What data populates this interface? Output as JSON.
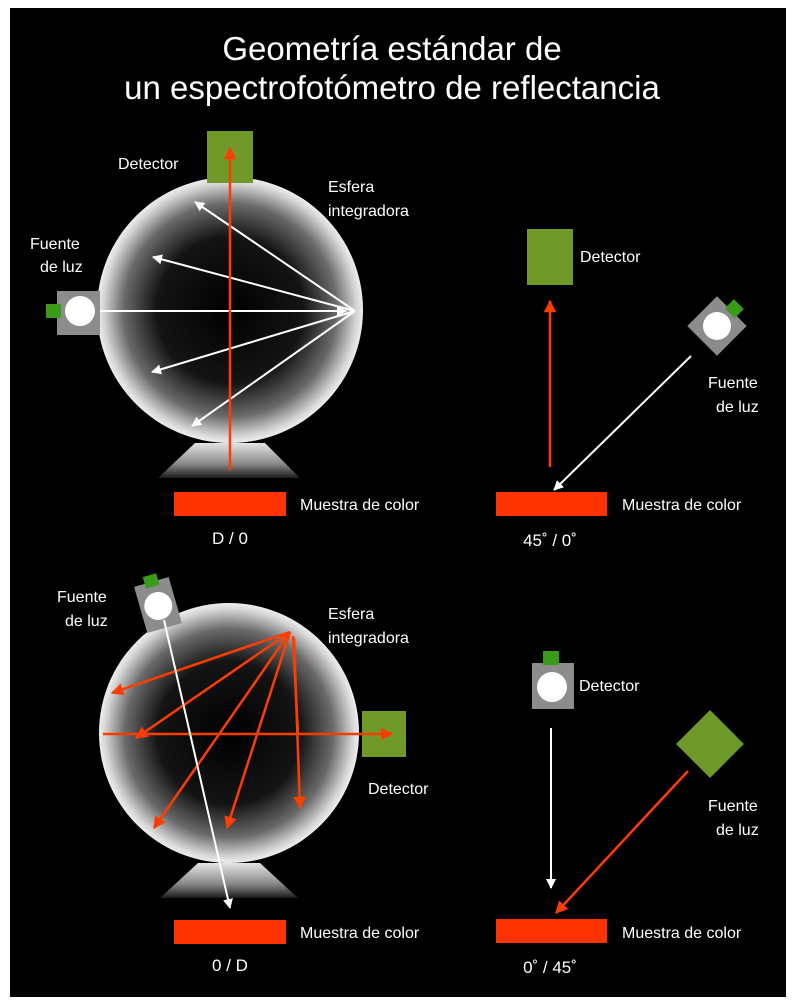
{
  "title": {
    "line1": "Geometría estándar de",
    "line2": "un espectrofotómetro de reflectancia"
  },
  "colors": {
    "background": "#000000",
    "text": "#ffffff",
    "detector": "#6f9a2a",
    "sample": "#ff3300",
    "red_ray": "#ff3d00",
    "white_ray": "#ffffff",
    "lamp_housing": "#8c8c8c",
    "lamp_socket": "#3a9a1a"
  },
  "icons": [
    "integrating-sphere",
    "light-source-lamp",
    "detector-square",
    "color-sample-bar",
    "ray-arrow"
  ],
  "panels": {
    "d0": {
      "detector": "Detector",
      "sphere_line1": "Esfera",
      "sphere_line2": "integradora",
      "source_line1": "Fuente",
      "source_line2": "de luz",
      "sample": "Muestra de color",
      "code": "D / 0"
    },
    "g45_0": {
      "detector": "Detector",
      "source_line1": "Fuente",
      "source_line2": "de luz",
      "sample": "Muestra de color",
      "code": "45˚ / 0˚"
    },
    "zero_d": {
      "source_line1": "Fuente",
      "source_line2": "de luz",
      "sphere_line1": "Esfera",
      "sphere_line2": "integradora",
      "detector": "Detector",
      "sample": "Muestra de color",
      "code": "0 / D"
    },
    "g0_45": {
      "detector": "Detector",
      "source_line1": "Fuente",
      "source_line2": "de luz",
      "sample": "Muestra de color",
      "code": "0˚ / 45˚"
    }
  }
}
